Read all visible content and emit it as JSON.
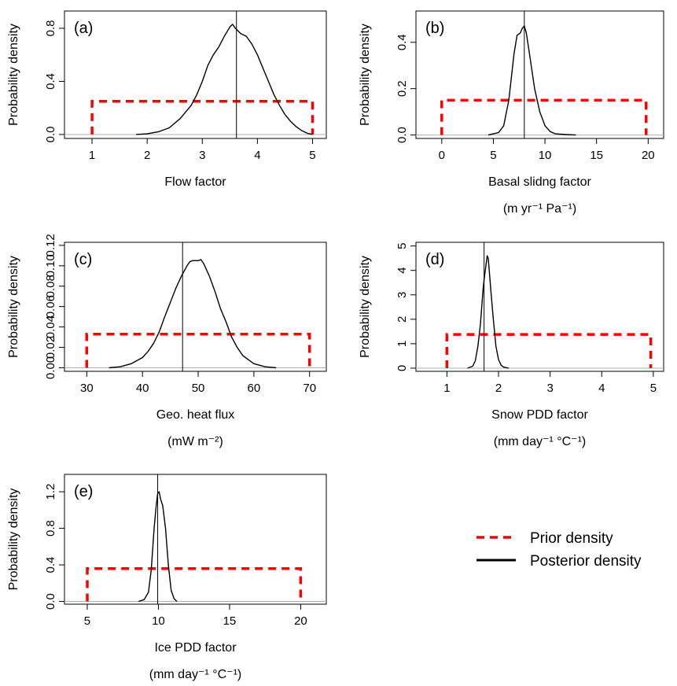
{
  "chart_data": [
    {
      "type": "line",
      "panel_label": "(a)",
      "xlabel": "Flow factor",
      "xlabel_unit": "",
      "ylabel": "Probability density",
      "xlim": [
        0.5,
        5.25
      ],
      "ylim": [
        -0.03,
        0.93
      ],
      "xticks": [
        1,
        2,
        3,
        4,
        5
      ],
      "yticks": [
        0.0,
        0.4,
        0.8
      ],
      "ytick_labels": [
        "0.0",
        "0.4",
        "0.8"
      ],
      "vline": 3.62,
      "series": [
        {
          "role": "prior",
          "x": [
            1,
            1,
            5,
            5
          ],
          "y": [
            0,
            0.25,
            0.25,
            0
          ]
        },
        {
          "role": "posterior",
          "x": [
            1.8,
            2.0,
            2.2,
            2.4,
            2.6,
            2.8,
            2.9,
            3.0,
            3.1,
            3.2,
            3.3,
            3.4,
            3.5,
            3.55,
            3.6,
            3.7,
            3.8,
            3.9,
            4.0,
            4.1,
            4.2,
            4.3,
            4.4,
            4.5,
            4.6,
            4.7,
            4.8,
            4.9,
            5.0
          ],
          "y": [
            0.0,
            0.005,
            0.02,
            0.05,
            0.12,
            0.22,
            0.3,
            0.4,
            0.52,
            0.6,
            0.66,
            0.74,
            0.81,
            0.83,
            0.8,
            0.76,
            0.74,
            0.68,
            0.6,
            0.5,
            0.4,
            0.3,
            0.22,
            0.15,
            0.1,
            0.06,
            0.03,
            0.01,
            0.0
          ]
        }
      ]
    },
    {
      "type": "line",
      "panel_label": "(b)",
      "xlabel": "Basal slidng factor",
      "xlabel_unit": "(m yr⁻¹ Pa⁻¹)",
      "ylabel": "Probability density",
      "xlim": [
        -2.5,
        21.5
      ],
      "ylim": [
        -0.015,
        0.535
      ],
      "xticks": [
        0,
        5,
        10,
        15,
        20
      ],
      "yticks": [
        0.0,
        0.2,
        0.4
      ],
      "ytick_labels": [
        "0.0",
        "0.2",
        "0.4"
      ],
      "vline": 8.0,
      "series": [
        {
          "role": "prior",
          "x": [
            0,
            0,
            19.8,
            19.8
          ],
          "y": [
            0,
            0.15,
            0.15,
            0
          ]
        },
        {
          "role": "posterior",
          "x": [
            4.5,
            5.5,
            6.0,
            6.5,
            7.0,
            7.3,
            7.6,
            7.8,
            8.0,
            8.2,
            8.5,
            9.0,
            9.5,
            10.0,
            10.5,
            11.0,
            12.0,
            13.0
          ],
          "y": [
            0.0,
            0.01,
            0.04,
            0.15,
            0.35,
            0.43,
            0.44,
            0.46,
            0.47,
            0.44,
            0.35,
            0.2,
            0.1,
            0.04,
            0.015,
            0.005,
            0.002,
            0.0
          ]
        }
      ]
    },
    {
      "type": "line",
      "panel_label": "(c)",
      "xlabel": "Geo. heat flux",
      "xlabel_unit": "(mW m⁻²)",
      "ylabel": "Probability density",
      "xlim": [
        26,
        73
      ],
      "ylim": [
        -0.0035,
        0.123
      ],
      "xticks": [
        30,
        40,
        50,
        60,
        70
      ],
      "yticks": [
        0.0,
        0.02,
        0.04,
        0.06,
        0.08,
        0.1,
        0.12
      ],
      "ytick_labels": [
        "0.00",
        "0.02",
        "0.04",
        "0.06",
        "0.08",
        "0.10",
        "0.12"
      ],
      "vline": 47.2,
      "series": [
        {
          "role": "prior",
          "x": [
            30,
            30,
            70,
            70
          ],
          "y": [
            0,
            0.033,
            0.033,
            0
          ]
        },
        {
          "role": "posterior",
          "x": [
            34,
            36,
            38,
            40,
            41,
            42,
            43,
            44,
            45,
            46,
            47,
            48,
            48.5,
            49,
            50,
            50.5,
            51,
            52,
            53,
            54,
            55,
            56,
            57,
            58,
            60,
            62,
            64
          ],
          "y": [
            0.0,
            0.001,
            0.004,
            0.01,
            0.016,
            0.024,
            0.035,
            0.05,
            0.064,
            0.078,
            0.09,
            0.1,
            0.104,
            0.105,
            0.105,
            0.106,
            0.102,
            0.09,
            0.075,
            0.058,
            0.045,
            0.03,
            0.02,
            0.012,
            0.004,
            0.001,
            0.0
          ]
        }
      ]
    },
    {
      "type": "line",
      "panel_label": "(d)",
      "xlabel": "Snow PDD factor",
      "xlabel_unit": "(mm day⁻¹ °C⁻¹)",
      "ylabel": "Probability density",
      "xlim": [
        0.4,
        5.2
      ],
      "ylim": [
        -0.13,
        5.15
      ],
      "xticks": [
        1,
        2,
        3,
        4,
        5
      ],
      "yticks": [
        0,
        1,
        2,
        3,
        4,
        5
      ],
      "ytick_labels": [
        "0",
        "1",
        "2",
        "3",
        "4",
        "5"
      ],
      "vline": 1.72,
      "series": [
        {
          "role": "prior",
          "x": [
            1,
            1,
            4.95,
            4.95
          ],
          "y": [
            0,
            1.38,
            1.38,
            0
          ]
        },
        {
          "role": "posterior",
          "x": [
            1.4,
            1.5,
            1.55,
            1.6,
            1.65,
            1.7,
            1.72,
            1.75,
            1.78,
            1.8,
            1.82,
            1.85,
            1.9,
            1.95,
            2.0,
            2.05,
            2.1,
            2.2
          ],
          "y": [
            0.0,
            0.08,
            0.3,
            0.9,
            1.8,
            3.2,
            3.6,
            4.1,
            4.6,
            4.5,
            4.0,
            3.2,
            2.0,
            0.9,
            0.35,
            0.12,
            0.04,
            0.0
          ]
        }
      ]
    },
    {
      "type": "line",
      "panel_label": "(e)",
      "xlabel": "Ice PDD factor",
      "xlabel_unit": "(mm day⁻¹ °C⁻¹)",
      "ylabel": "Probability density",
      "xlim": [
        3.4,
        21.8
      ],
      "ylim": [
        -0.03,
        1.39
      ],
      "xticks": [
        5,
        10,
        15,
        20
      ],
      "yticks": [
        0.0,
        0.4,
        0.8,
        1.2
      ],
      "ytick_labels": [
        "0.0",
        "0.4",
        "0.8",
        "1.2"
      ],
      "vline": 9.95,
      "series": [
        {
          "role": "prior",
          "x": [
            5,
            5,
            20,
            20
          ],
          "y": [
            0,
            0.36,
            0.36,
            0
          ]
        },
        {
          "role": "posterior",
          "x": [
            8.6,
            9.0,
            9.3,
            9.5,
            9.7,
            9.85,
            9.95,
            10.05,
            10.15,
            10.3,
            10.5,
            10.7,
            10.9,
            11.1,
            11.3
          ],
          "y": [
            0.0,
            0.02,
            0.1,
            0.35,
            0.8,
            1.05,
            1.18,
            1.2,
            1.12,
            1.05,
            0.8,
            0.4,
            0.12,
            0.03,
            0.0
          ]
        }
      ]
    }
  ],
  "legend": {
    "placement": "right of panel (e)",
    "items": [
      {
        "label": "Prior density",
        "style": "dashed",
        "color": "#ff0000"
      },
      {
        "label": "Posterior density",
        "style": "solid",
        "color": "#000000"
      }
    ]
  },
  "colors": {
    "prior": "#ff0000",
    "posterior": "#000000",
    "axis": "#000000",
    "baseline": "#b0b0b0"
  }
}
